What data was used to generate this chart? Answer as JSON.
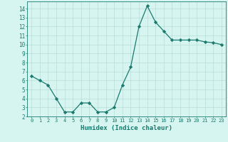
{
  "x": [
    0,
    1,
    2,
    3,
    4,
    5,
    6,
    7,
    8,
    9,
    10,
    11,
    12,
    13,
    14,
    15,
    16,
    17,
    18,
    19,
    20,
    21,
    22,
    23
  ],
  "y": [
    6.5,
    6.0,
    5.5,
    4.0,
    2.5,
    2.5,
    3.5,
    3.5,
    2.5,
    2.5,
    3.0,
    5.5,
    7.5,
    12.0,
    14.3,
    12.5,
    11.5,
    10.5,
    10.5,
    10.5,
    10.5,
    10.3,
    10.2,
    10.0
  ],
  "title": "",
  "xlabel": "Humidex (Indice chaleur)",
  "ylabel": "",
  "xlim": [
    -0.5,
    23.5
  ],
  "ylim": [
    2,
    14.8
  ],
  "yticks": [
    2,
    3,
    4,
    5,
    6,
    7,
    8,
    9,
    10,
    11,
    12,
    13,
    14
  ],
  "xticks": [
    0,
    1,
    2,
    3,
    4,
    5,
    6,
    7,
    8,
    9,
    10,
    11,
    12,
    13,
    14,
    15,
    16,
    17,
    18,
    19,
    20,
    21,
    22,
    23
  ],
  "line_color": "#1a7a6e",
  "marker": "D",
  "marker_size": 2.2,
  "bg_color": "#d6f5f0",
  "grid_color": "#b8ddd8",
  "axis_color": "#1a7a6e",
  "tick_color": "#1a7a6e",
  "xlabel_fontsize": 6.5,
  "tick_fontsize_x": 5.0,
  "tick_fontsize_y": 5.5
}
